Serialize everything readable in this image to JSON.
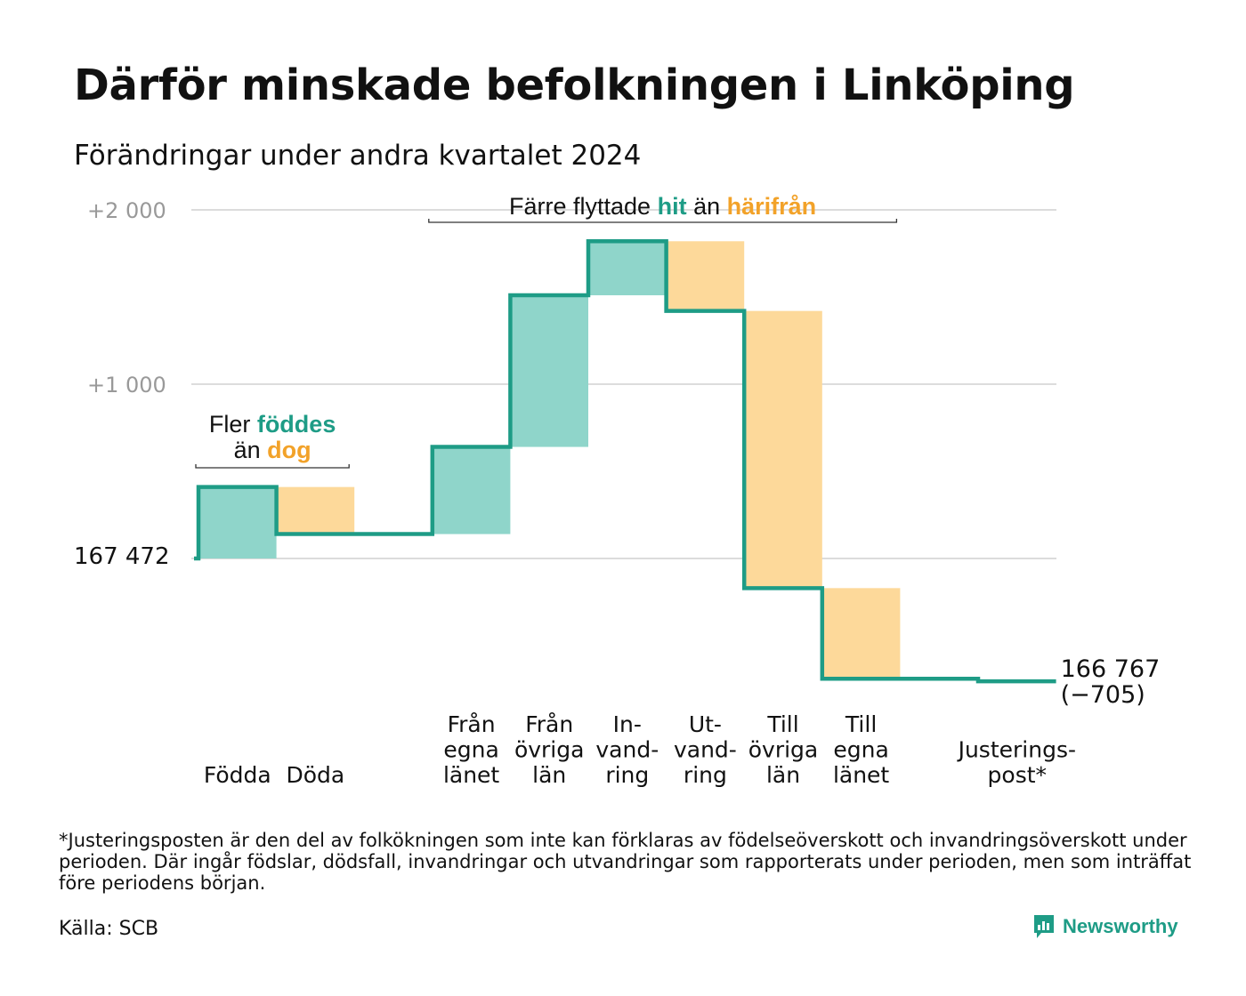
{
  "title": "Därför minskade befolkningen i Linköping",
  "subtitle": "Förändringar under andra kvartalet 2024",
  "colors": {
    "increase_fill": "#8fd5ca",
    "decrease_fill": "#fdd99a",
    "line": "#1e9c86",
    "accent_green": "#1e9c86",
    "accent_orange": "#f2a229",
    "grid": "#dcdcdc",
    "tick_gray": "#999999"
  },
  "chart_data": {
    "type": "waterfall",
    "start_value": 167472,
    "start_label": "167 472",
    "end_value": 166767,
    "end_label": "166 767",
    "end_change_label": "(−705)",
    "yticks": [
      {
        "value": 2000,
        "label": "+2 000"
      },
      {
        "value": 1000,
        "label": "+1 000"
      }
    ],
    "ylim_change": [
      -800,
      2000
    ],
    "steps": [
      {
        "lines": [
          "Födda"
        ],
        "change": 410,
        "kind": "increase"
      },
      {
        "lines": [
          "Döda"
        ],
        "change": -270,
        "kind": "decrease"
      },
      {
        "lines": [
          ""
        ],
        "change": 0,
        "kind": "flat"
      },
      {
        "lines": [
          "Från",
          "egna",
          "länet"
        ],
        "change": 500,
        "kind": "increase"
      },
      {
        "lines": [
          "Från",
          "övriga",
          "län"
        ],
        "change": 870,
        "kind": "increase"
      },
      {
        "lines": [
          "In-",
          "vand-",
          "ring"
        ],
        "change": 310,
        "kind": "increase"
      },
      {
        "lines": [
          "Ut-",
          "vand-",
          "ring"
        ],
        "change": -400,
        "kind": "decrease"
      },
      {
        "lines": [
          "Till",
          "övriga",
          "län"
        ],
        "change": -1590,
        "kind": "decrease"
      },
      {
        "lines": [
          "Till",
          "egna",
          "länet"
        ],
        "change": -520,
        "kind": "decrease"
      },
      {
        "lines": [
          ""
        ],
        "change": 0,
        "kind": "flat"
      },
      {
        "lines": [
          "Justerings-",
          "post*"
        ],
        "change": -15,
        "kind": "adjustment"
      }
    ],
    "annotations": [
      {
        "id": "births",
        "parts": [
          {
            "line": 0,
            "text": "Fler ",
            "color": "#111111",
            "bold": false
          },
          {
            "line": 0,
            "text": "föddes",
            "color": "#1e9c86",
            "bold": true
          },
          {
            "line": 1,
            "text": "än ",
            "color": "#111111",
            "bold": false
          },
          {
            "line": 1,
            "text": "dog",
            "color": "#f2a229",
            "bold": true
          }
        ]
      },
      {
        "id": "moves",
        "parts": [
          {
            "line": 0,
            "text": "Färre flyttade ",
            "color": "#111111",
            "bold": false
          },
          {
            "line": 0,
            "text": "hit",
            "color": "#1e9c86",
            "bold": true
          },
          {
            "line": 0,
            "text": " än ",
            "color": "#111111",
            "bold": false
          },
          {
            "line": 0,
            "text": "härifrån",
            "color": "#f2a229",
            "bold": true
          }
        ]
      }
    ]
  },
  "footnote": "*Justeringsposten är den del av folkökningen som inte kan förklaras av födelseöverskott och invandringsöverskott under perioden. Där ingår födslar, dödsfall, invandringar och utvandringar som rapporterats under perioden, men som inträffat före periodens början.",
  "source": "Källa: SCB",
  "brand": {
    "name": "Newsworthy",
    "icon": "newsworthy-logo-icon"
  }
}
